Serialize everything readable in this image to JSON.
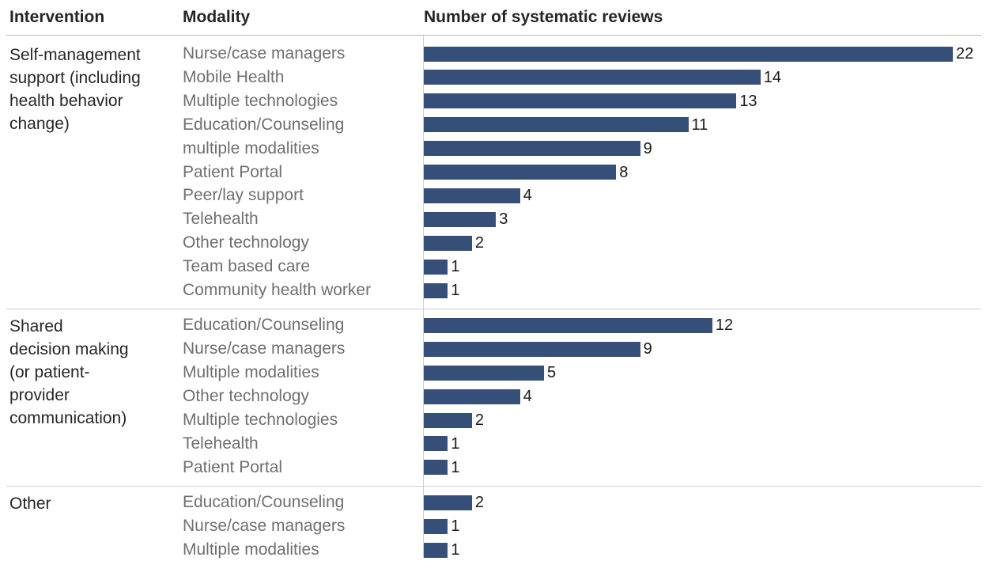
{
  "headers": {
    "intervention": "Intervention",
    "modality": "Modality",
    "count": "Number of systematic reviews"
  },
  "chart_data": {
    "type": "bar",
    "orientation": "horizontal",
    "xlabel": "Number of systematic reviews",
    "xlim": [
      0,
      22
    ],
    "groups": [
      {
        "intervention": "Self-management support (including health behavior change)",
        "intervention_lines": [
          "Self-management",
          "support (including",
          "health behavior",
          "change)"
        ],
        "rows": [
          {
            "modality": "Nurse/case managers",
            "value": 22
          },
          {
            "modality": "Mobile Health",
            "value": 14
          },
          {
            "modality": "Multiple technologies",
            "value": 13
          },
          {
            "modality": "Education/Counseling",
            "value": 11
          },
          {
            "modality": "multiple modalities",
            "value": 9
          },
          {
            "modality": "Patient Portal",
            "value": 8
          },
          {
            "modality": "Peer/lay support",
            "value": 4
          },
          {
            "modality": "Telehealth",
            "value": 3
          },
          {
            "modality": "Other technology",
            "value": 2
          },
          {
            "modality": "Team based care",
            "value": 1
          },
          {
            "modality": "Community health worker",
            "value": 1
          }
        ]
      },
      {
        "intervention": "Shared decision making (or patient-provider communication)",
        "intervention_lines": [
          "Shared",
          "decision making",
          "(or patient-",
          "provider",
          "communication)"
        ],
        "rows": [
          {
            "modality": "Education/Counseling",
            "value": 12
          },
          {
            "modality": "Nurse/case managers",
            "value": 9
          },
          {
            "modality": "Multiple modalities",
            "value": 5
          },
          {
            "modality": "Other technology",
            "value": 4
          },
          {
            "modality": "Multiple technologies",
            "value": 2
          },
          {
            "modality": "Telehealth",
            "value": 1
          },
          {
            "modality": "Patient Portal",
            "value": 1
          }
        ]
      },
      {
        "intervention": "Other",
        "intervention_lines": [
          "Other"
        ],
        "rows": [
          {
            "modality": "Education/Counseling",
            "value": 2
          },
          {
            "modality": "Nurse/case managers",
            "value": 1
          },
          {
            "modality": "Multiple modalities",
            "value": 1
          }
        ]
      }
    ],
    "colors": {
      "bar": "#364f78"
    }
  }
}
